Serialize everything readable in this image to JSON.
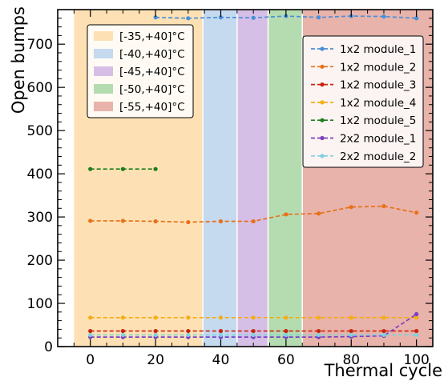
{
  "chart_data": {
    "type": "line",
    "xlabel": "Thermal cycle",
    "ylabel": "Open bumps",
    "xlim": [
      -10,
      105
    ],
    "ylim": [
      0,
      780
    ],
    "x_ticks": [
      0,
      20,
      40,
      60,
      80,
      100
    ],
    "y_ticks": [
      0,
      100,
      200,
      300,
      400,
      500,
      600,
      700
    ],
    "grid": false,
    "bands": [
      {
        "name": "[-35,+40]°C",
        "x0": -5,
        "x1": 34.5,
        "color": "#fde1b4"
      },
      {
        "name": "[-40,+40]°C",
        "x0": 34.5,
        "x1": 45,
        "color": "#c5d9ef"
      },
      {
        "name": "[-45,+40]°C",
        "x0": 45,
        "x1": 54.5,
        "color": "#d6bfe6"
      },
      {
        "name": "[-50,+40]°C",
        "x0": 54.5,
        "x1": 65,
        "color": "#b5dcb0"
      },
      {
        "name": "[-55,+40]°C",
        "x0": 65,
        "x1": 105,
        "color": "#e8b3aa"
      }
    ],
    "band_legend_position": "upper-left",
    "series_legend_position": "upper-right",
    "series": [
      {
        "name": "1x2 module_1",
        "color": "#4a8fd8",
        "x": [
          20,
          30,
          40,
          50,
          60,
          70,
          80,
          90,
          100
        ],
        "y": [
          762,
          760,
          762,
          761,
          765,
          762,
          765,
          764,
          760
        ]
      },
      {
        "name": "1x2 module_2",
        "color": "#e8701a",
        "x": [
          0,
          10,
          20,
          30,
          40,
          50,
          60,
          70,
          80,
          90,
          100
        ],
        "y": [
          291,
          291,
          290,
          288,
          290,
          290,
          306,
          308,
          323,
          325,
          310
        ]
      },
      {
        "name": "1x2 module_3",
        "color": "#c8240f",
        "x": [
          0,
          10,
          20,
          30,
          40,
          50,
          60,
          70,
          80,
          90,
          100
        ],
        "y": [
          36,
          36,
          36,
          36,
          36,
          36,
          36,
          36,
          36,
          36,
          36
        ]
      },
      {
        "name": "1x2 module_4",
        "color": "#f5ac15",
        "x": [
          0,
          10,
          20,
          30,
          40,
          50,
          60,
          70,
          80,
          90,
          100
        ],
        "y": [
          67,
          67,
          67,
          67,
          67,
          67,
          67,
          67,
          67,
          67,
          67
        ]
      },
      {
        "name": "1x2 module_5",
        "color": "#1c7d1c",
        "x": [
          0,
          10,
          20
        ],
        "y": [
          411,
          411,
          411
        ]
      },
      {
        "name": "2x2 module_1",
        "color": "#7b3fc4",
        "x": [
          0,
          10,
          20,
          30,
          40,
          50,
          60,
          70,
          80,
          90,
          100
        ],
        "y": [
          22,
          22,
          22,
          22,
          22,
          22,
          22,
          22,
          23,
          25,
          75
        ]
      },
      {
        "name": "2x2 module_2",
        "color": "#7fd0e0",
        "x": [
          0,
          10,
          20,
          30,
          40,
          50,
          60,
          70,
          80,
          90,
          100
        ],
        "y": [
          27,
          27,
          27,
          27,
          27,
          27,
          27,
          27,
          27,
          27,
          27
        ]
      }
    ]
  }
}
